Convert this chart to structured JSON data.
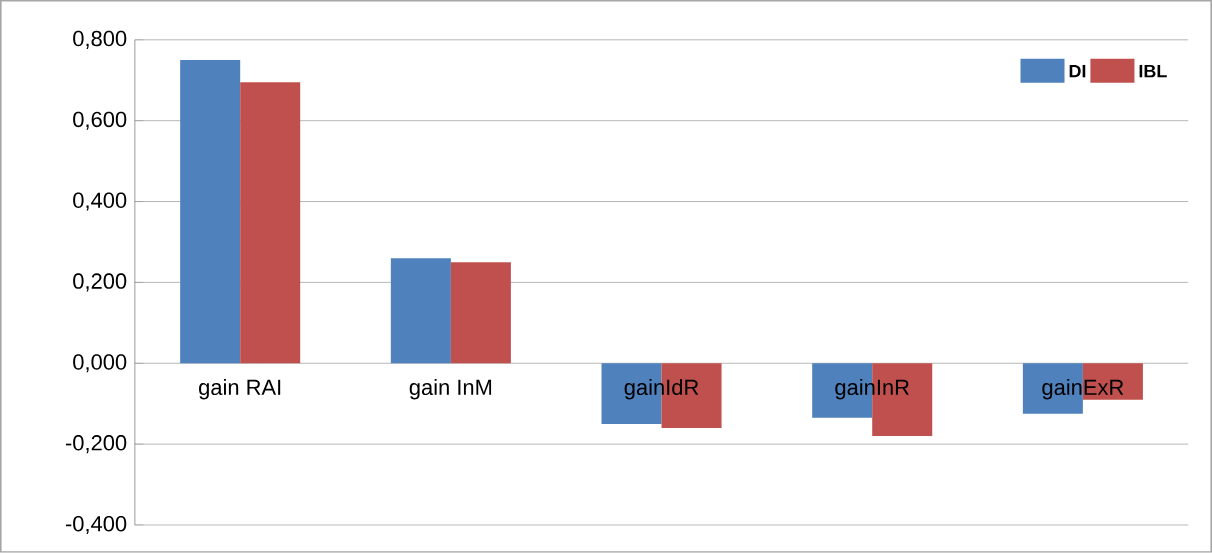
{
  "chart_data": {
    "type": "bar",
    "categories": [
      "gain RAI",
      "gain InM",
      "gainIdR",
      "gainInR",
      "gainExR"
    ],
    "series": [
      {
        "name": "DI",
        "color": "#4f81bd",
        "values": [
          0.75,
          0.26,
          -0.15,
          -0.135,
          -0.125
        ]
      },
      {
        "name": "IBL",
        "color": "#c0504d",
        "values": [
          0.695,
          0.25,
          -0.16,
          -0.18,
          -0.09
        ]
      }
    ],
    "ylim": [
      -0.4,
      0.8
    ],
    "yticks": [
      {
        "value": -0.4,
        "label": "-0,400"
      },
      {
        "value": -0.2,
        "label": "-0,200"
      },
      {
        "value": 0,
        "label": "0,000"
      },
      {
        "value": 0.2,
        "label": "0,200"
      },
      {
        "value": 0.4,
        "label": "0,400"
      },
      {
        "value": 0.6,
        "label": "0,600"
      },
      {
        "value": 0.8,
        "label": "0,800"
      }
    ],
    "grid": "y",
    "legend": "top right"
  }
}
